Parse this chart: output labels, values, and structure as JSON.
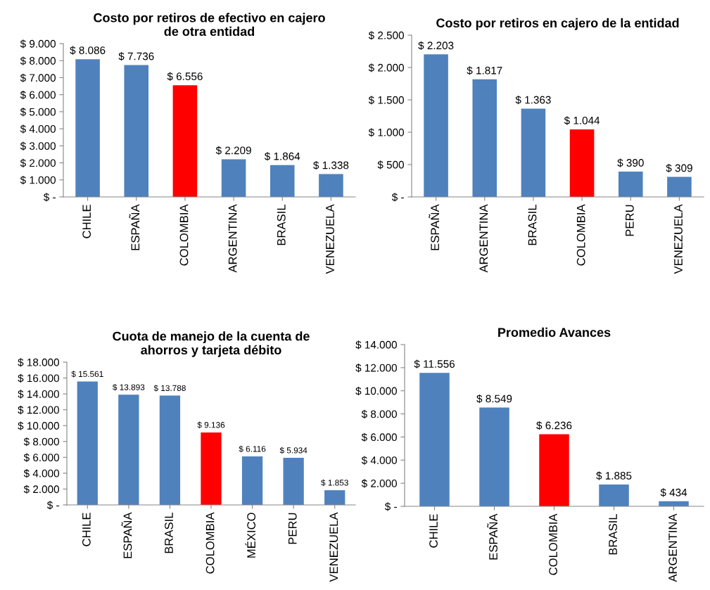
{
  "chart_data": [
    {
      "type": "bar",
      "title": "Costo por retiros de efectivo en cajero de otra entidad",
      "categories": [
        "CHILE",
        "ESPAÑA",
        "COLOMBIA",
        "ARGENTINA",
        "BRASIL",
        "VENEZUELA"
      ],
      "values": [
        8086,
        7736,
        6556,
        2209,
        1864,
        1338
      ],
      "colors": [
        "#4f81bd",
        "#4f81bd",
        "#ff0000",
        "#4f81bd",
        "#4f81bd",
        "#4f81bd"
      ],
      "value_labels": [
        "$ 8.086",
        "$ 7.736",
        "$ 6.556",
        "$ 2.209",
        "$ 1.864",
        "$ 1.338"
      ],
      "ylim": [
        0,
        9000
      ],
      "yticks": [
        {
          "value": 0,
          "label": "$ -"
        },
        {
          "value": 1000,
          "label": "$ 1.000"
        },
        {
          "value": 2000,
          "label": "$ 2.000"
        },
        {
          "value": 3000,
          "label": "$ 3.000"
        },
        {
          "value": 4000,
          "label": "$ 4.000"
        },
        {
          "value": 5000,
          "label": "$ 5.000"
        },
        {
          "value": 6000,
          "label": "$ 6.000"
        },
        {
          "value": 7000,
          "label": "$ 7.000"
        },
        {
          "value": 8000,
          "label": "$ 8.000"
        },
        {
          "value": 9000,
          "label": "$ 9.000"
        }
      ],
      "grid": false
    },
    {
      "type": "bar",
      "title": "Costo por retiros en cajero de la entidad",
      "categories": [
        "ESPAÑA",
        "ARGENTINA",
        "BRASIL",
        "COLOMBIA",
        "PERU",
        "VENEZUELA"
      ],
      "values": [
        2203,
        1817,
        1363,
        1044,
        390,
        309
      ],
      "colors": [
        "#4f81bd",
        "#4f81bd",
        "#4f81bd",
        "#ff0000",
        "#4f81bd",
        "#4f81bd"
      ],
      "value_labels": [
        "$ 2.203",
        "$ 1.817",
        "$ 1.363",
        "$ 1.044",
        "$ 390",
        "$ 309"
      ],
      "ylim": [
        0,
        2500
      ],
      "yticks": [
        {
          "value": 0,
          "label": "$ -"
        },
        {
          "value": 500,
          "label": "$ 500"
        },
        {
          "value": 1000,
          "label": "$ 1.000"
        },
        {
          "value": 1500,
          "label": "$ 1.500"
        },
        {
          "value": 2000,
          "label": "$ 2.000"
        },
        {
          "value": 2500,
          "label": "$ 2.500"
        }
      ],
      "grid": false
    },
    {
      "type": "bar",
      "title": "Cuota de manejo de la cuenta de ahorros y tarjeta débito",
      "categories": [
        "CHILE",
        "ESPAÑA",
        "BRASIL",
        "COLOMBIA",
        "MÉXICO",
        "PERU",
        "VENEZUELA"
      ],
      "values": [
        15561,
        13893,
        13788,
        9136,
        6116,
        5934,
        1853
      ],
      "colors": [
        "#4f81bd",
        "#4f81bd",
        "#4f81bd",
        "#ff0000",
        "#4f81bd",
        "#4f81bd",
        "#4f81bd"
      ],
      "value_labels": [
        "$ 15.561",
        "$ 13.893",
        "$ 13.788",
        "$ 9.136",
        "$ 6.116",
        "$ 5.934",
        "$ 1.853"
      ],
      "ylim": [
        0,
        18000
      ],
      "yticks": [
        {
          "value": 0,
          "label": "$ -"
        },
        {
          "value": 2000,
          "label": "$ 2.000"
        },
        {
          "value": 4000,
          "label": "$ 4.000"
        },
        {
          "value": 6000,
          "label": "$ 6.000"
        },
        {
          "value": 8000,
          "label": "$ 8.000"
        },
        {
          "value": 10000,
          "label": "$ 10.000"
        },
        {
          "value": 12000,
          "label": "$ 12.000"
        },
        {
          "value": 14000,
          "label": "$ 14.000"
        },
        {
          "value": 16000,
          "label": "$ 16.000"
        },
        {
          "value": 18000,
          "label": "$ 18.000"
        }
      ],
      "grid": false
    },
    {
      "type": "bar",
      "title": "Promedio Avances",
      "categories": [
        "CHILE",
        "ESPAÑA",
        "COLOMBIA",
        "BRASIL",
        "ARGENTINA"
      ],
      "values": [
        11556,
        8549,
        6236,
        1885,
        434
      ],
      "colors": [
        "#4f81bd",
        "#4f81bd",
        "#ff0000",
        "#4f81bd",
        "#4f81bd"
      ],
      "value_labels": [
        "$ 11.556",
        "$ 8.549",
        "$ 6.236",
        "$ 1.885",
        "$ 434"
      ],
      "ylim": [
        0,
        14000
      ],
      "yticks": [
        {
          "value": 0,
          "label": "$ -"
        },
        {
          "value": 2000,
          "label": "$ 2.000"
        },
        {
          "value": 4000,
          "label": "$ 4.000"
        },
        {
          "value": 6000,
          "label": "$ 6.000"
        },
        {
          "value": 8000,
          "label": "$ 8.000"
        },
        {
          "value": 10000,
          "label": "$ 10.000"
        },
        {
          "value": 12000,
          "label": "$ 12.000"
        },
        {
          "value": 14000,
          "label": "$ 14.000"
        }
      ],
      "grid": false
    }
  ]
}
